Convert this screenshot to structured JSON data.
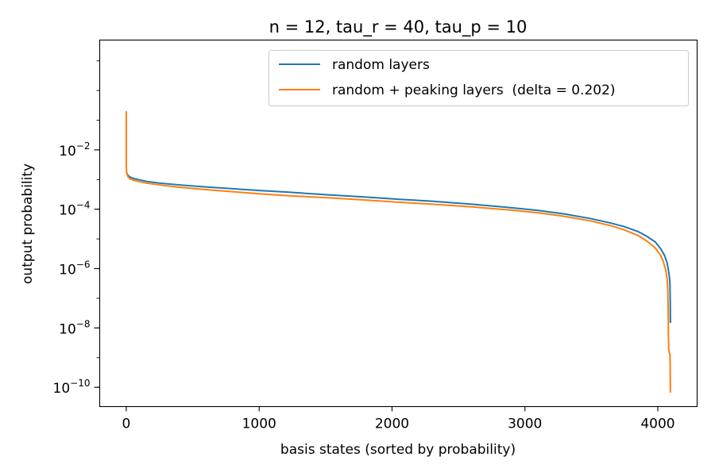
{
  "chart_data": {
    "type": "line",
    "title": "n = 12, tau_r = 40, tau_p = 10",
    "xlabel": "basis states (sorted by probability)",
    "ylabel": "output probability",
    "xlim": [
      -200,
      4296
    ],
    "ylim_log10": [
      -10.65,
      1.7
    ],
    "yscale": "log",
    "grid": false,
    "legend_position": "top-right",
    "x_ticks": [
      {
        "value": 0,
        "label": "0"
      },
      {
        "value": 1000,
        "label": "1000"
      },
      {
        "value": 2000,
        "label": "2000"
      },
      {
        "value": 3000,
        "label": "3000"
      },
      {
        "value": 4000,
        "label": "4000"
      }
    ],
    "y_ticks": [
      {
        "exp": -2,
        "base": "10",
        "sup": "−2"
      },
      {
        "exp": -4,
        "base": "10",
        "sup": "−4"
      },
      {
        "exp": -6,
        "base": "10",
        "sup": "−6"
      },
      {
        "exp": -8,
        "base": "10",
        "sup": "−8"
      },
      {
        "exp": -10,
        "base": "10",
        "sup": "−10"
      }
    ],
    "series": [
      {
        "name": "random layers",
        "color": "#1f77b4",
        "x": [
          0,
          5,
          15,
          30,
          60,
          100,
          150,
          250,
          400,
          600,
          800,
          1000,
          1200,
          1500,
          1800,
          2000,
          2300,
          2600,
          2900,
          3100,
          3300,
          3500,
          3650,
          3750,
          3850,
          3920,
          3980,
          4020,
          4050,
          4070,
          4080,
          4088,
          4092,
          4094,
          4095
        ],
        "log10_y": [
          -2.72,
          -2.8,
          -2.87,
          -2.92,
          -2.97,
          -3.01,
          -3.06,
          -3.12,
          -3.18,
          -3.25,
          -3.31,
          -3.37,
          -3.42,
          -3.51,
          -3.59,
          -3.65,
          -3.73,
          -3.83,
          -3.95,
          -4.04,
          -4.16,
          -4.32,
          -4.47,
          -4.59,
          -4.75,
          -4.92,
          -5.1,
          -5.32,
          -5.55,
          -5.8,
          -6.05,
          -6.3,
          -6.6,
          -7.2,
          -7.83
        ]
      },
      {
        "name": "random + peaking layers  (delta = 0.202)",
        "color": "#ff7f0e",
        "x": [
          0,
          0,
          2,
          5,
          15,
          30,
          60,
          100,
          150,
          250,
          400,
          600,
          800,
          1000,
          1200,
          1500,
          1800,
          2000,
          2300,
          2600,
          2900,
          3100,
          3300,
          3500,
          3650,
          3750,
          3850,
          3920,
          3980,
          4020,
          4040,
          4060,
          4070,
          4075,
          4078,
          4080,
          4082,
          4085,
          4088,
          4090,
          4092,
          4093,
          4094,
          4095
        ],
        "log10_y": [
          -0.7,
          -2.6,
          -2.72,
          -2.82,
          -2.92,
          -2.98,
          -3.03,
          -3.07,
          -3.12,
          -3.18,
          -3.26,
          -3.34,
          -3.41,
          -3.48,
          -3.54,
          -3.61,
          -3.69,
          -3.75,
          -3.83,
          -3.92,
          -4.03,
          -4.12,
          -4.24,
          -4.4,
          -4.56,
          -4.7,
          -4.88,
          -5.08,
          -5.3,
          -5.55,
          -5.75,
          -6.05,
          -6.35,
          -6.7,
          -7.3,
          -8.2,
          -8.7,
          -8.8,
          -8.85,
          -8.88,
          -8.95,
          -9.3,
          -9.8,
          -10.18
        ]
      }
    ]
  }
}
